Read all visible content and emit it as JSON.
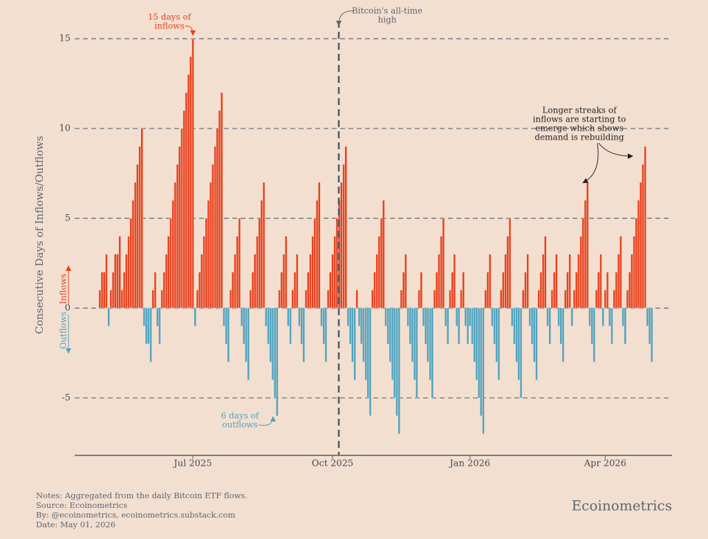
{
  "chart_data": {
    "type": "bar",
    "y_label": "Consecutive Days of Inflows/Outflows",
    "direction_labels": {
      "up": "Inflows",
      "down": "Outflows"
    },
    "colors": {
      "positive": "#e8401c",
      "negative": "#4fa3bf"
    },
    "categories": [
      null,
      null,
      null,
      null,
      null,
      null,
      null,
      null,
      null,
      null,
      null,
      null,
      null,
      null,
      null,
      null,
      null,
      null,
      null,
      null,
      null,
      null,
      null,
      null,
      null,
      null,
      null,
      null,
      null,
      null,
      null,
      null,
      null,
      null,
      null,
      null,
      null,
      null,
      null,
      null,
      null,
      null,
      "Jul 2025",
      null,
      null,
      null,
      null,
      null,
      null,
      null,
      null,
      null,
      null,
      null,
      null,
      null,
      null,
      null,
      null,
      null,
      null,
      null,
      null,
      null,
      null,
      null,
      null,
      null,
      null,
      null,
      null,
      null,
      null,
      null,
      null,
      null,
      null,
      null,
      null,
      null,
      null,
      null,
      null,
      null,
      null,
      null,
      null,
      null,
      null,
      null,
      null,
      null,
      null,
      null,
      null,
      null,
      null,
      null,
      null,
      null,
      null,
      null,
      null,
      null,
      null,
      "Oct 2025",
      null,
      null,
      null,
      null,
      null,
      null,
      null,
      null,
      null,
      null,
      null,
      null,
      null,
      null,
      null,
      null,
      null,
      null,
      null,
      null,
      null,
      null,
      null,
      null,
      null,
      null,
      null,
      null,
      null,
      null,
      null,
      null,
      null,
      null,
      null,
      null,
      null,
      null,
      null,
      null,
      null,
      null,
      null,
      null,
      null,
      null,
      null,
      null,
      null,
      null,
      null,
      null,
      null,
      null,
      null,
      null,
      null,
      null,
      null,
      null,
      null,
      "Jan 2026",
      null,
      null,
      null,
      null,
      null,
      null,
      null,
      null,
      null,
      null,
      null,
      null,
      null,
      null,
      null,
      null,
      null,
      null,
      null,
      null,
      null,
      null,
      null,
      null,
      null,
      null,
      null,
      null,
      null,
      null,
      null,
      null,
      null,
      null,
      null,
      null,
      null,
      null,
      null,
      null,
      null,
      null,
      null,
      null,
      null,
      null,
      null,
      null,
      null,
      null,
      null,
      null,
      null,
      null,
      null,
      null,
      null,
      null,
      null,
      null,
      "Apr 2026",
      null,
      null,
      null,
      null,
      null,
      null,
      null,
      null,
      null,
      null,
      null,
      null,
      null,
      null,
      null,
      null,
      null,
      null,
      null,
      null,
      null
    ],
    "values": [
      1,
      2,
      2,
      3,
      -1,
      1,
      2,
      3,
      3,
      4,
      1,
      2,
      3,
      4,
      5,
      6,
      7,
      8,
      9,
      10,
      -1,
      -2,
      -2,
      -3,
      1,
      2,
      -1,
      -2,
      1,
      2,
      3,
      4,
      5,
      6,
      7,
      8,
      9,
      10,
      11,
      12,
      13,
      14,
      15,
      -1,
      1,
      2,
      3,
      4,
      5,
      6,
      7,
      8,
      9,
      10,
      11,
      12,
      -1,
      -2,
      -3,
      1,
      2,
      3,
      4,
      5,
      -1,
      -2,
      -3,
      -4,
      1,
      2,
      3,
      4,
      5,
      6,
      7,
      -1,
      -2,
      -3,
      -4,
      -5,
      -6,
      1,
      2,
      3,
      4,
      -1,
      -2,
      1,
      2,
      3,
      -1,
      -2,
      -3,
      1,
      2,
      3,
      4,
      5,
      6,
      7,
      -1,
      -2,
      -3,
      1,
      2,
      3,
      4,
      5,
      6,
      7,
      8,
      9,
      -1,
      -2,
      -3,
      -4,
      1,
      -1,
      -2,
      -3,
      -4,
      -5,
      -6,
      1,
      2,
      3,
      4,
      5,
      6,
      -1,
      -2,
      -3,
      -4,
      -5,
      -6,
      -7,
      1,
      2,
      3,
      -1,
      -2,
      -3,
      -4,
      -5,
      1,
      2,
      -1,
      -2,
      -3,
      -4,
      -5,
      1,
      2,
      3,
      4,
      5,
      -1,
      -2,
      1,
      2,
      3,
      -1,
      -2,
      1,
      2,
      -1,
      -2,
      -1,
      -2,
      -3,
      -4,
      -5,
      -6,
      -7,
      1,
      2,
      3,
      -1,
      -2,
      -3,
      -4,
      1,
      2,
      3,
      4,
      5,
      -1,
      -2,
      -3,
      -4,
      -5,
      1,
      2,
      3,
      -1,
      -2,
      -3,
      -4,
      1,
      2,
      3,
      4,
      -1,
      -2,
      1,
      2,
      3,
      -1,
      -2,
      -3,
      1,
      2,
      3,
      -1,
      1,
      2,
      3,
      4,
      5,
      6,
      7,
      -1,
      -2,
      -3,
      1,
      2,
      3,
      -1,
      1,
      2,
      -1,
      -2,
      1,
      2,
      3,
      4,
      -1,
      -2,
      1,
      2,
      3,
      4,
      5,
      6,
      7,
      8,
      9,
      -1,
      -2,
      -3
    ],
    "ylim": [
      -8.2,
      16
    ],
    "yticks": [
      -5,
      0,
      5,
      10,
      15
    ],
    "grid": true,
    "annotations": {
      "peak_inflows": [
        "15 days of",
        "inflows"
      ],
      "ath": [
        "Bitcoin's all-time",
        "high"
      ],
      "peak_outflows": [
        "6 days of",
        "outflows"
      ],
      "streaks": [
        "Longer streaks of",
        "inflows are starting to",
        "emerge which shows",
        "demand is rebuilding"
      ]
    },
    "notes": [
      "Notes: Aggregated from the daily Bitcoin ETF flows.",
      "Source: Ecoinometrics",
      "By: @ecoinometrics, ecoinometrics.substack.com",
      "Date: May 01, 2026"
    ],
    "brand": "Ecoinometrics"
  }
}
